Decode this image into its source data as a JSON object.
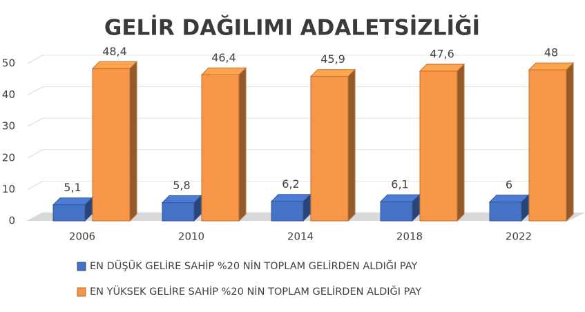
{
  "chart_data": {
    "type": "bar3d",
    "title": "GELİR DAĞILIMI ADALETSİZLİĞİ",
    "categories": [
      "2006",
      "2010",
      "2014",
      "2018",
      "2022"
    ],
    "series": [
      {
        "name": "EN DÜŞÜK GELİRE SAHİP %20 NİN TOPLAM GELİRDEN ALDIĞI PAY",
        "color": "#4472c4",
        "values": [
          5.1,
          5.8,
          6.2,
          6.1,
          6
        ],
        "value_labels": [
          "5,1",
          "5,8",
          "6,2",
          "6,1",
          "6"
        ]
      },
      {
        "name": "EN YÜKSEK GELİRE SAHİP %20 NİN TOPLAM GELİRDEN ALDIĞI PAY",
        "color": "#f79646",
        "values": [
          48.4,
          46.4,
          45.9,
          47.6,
          48
        ],
        "value_labels": [
          "48,4",
          "46,4",
          "45,9",
          "47,6",
          "48"
        ]
      }
    ],
    "ylim": [
      0,
      50
    ],
    "yticks": [
      0,
      10,
      20,
      30,
      40,
      50
    ],
    "grid": true,
    "legend": "bottom"
  }
}
